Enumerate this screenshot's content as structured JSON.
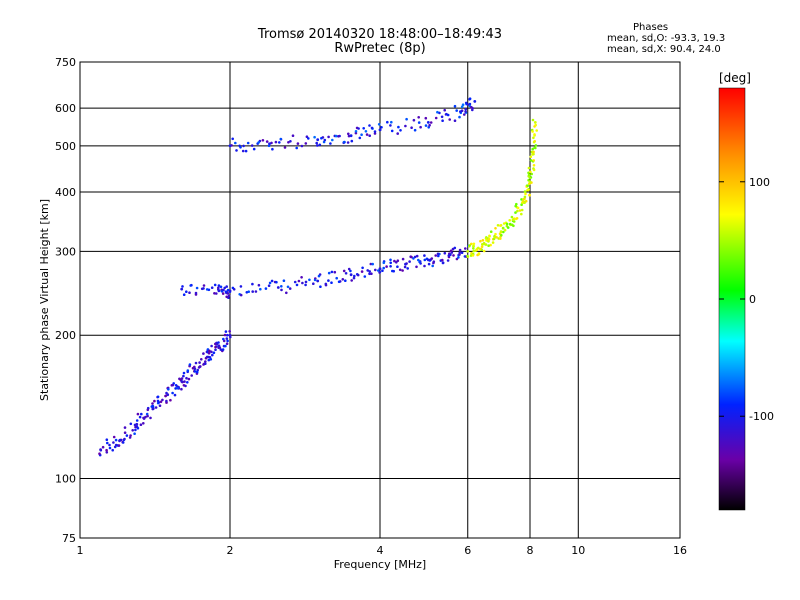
{
  "chart_data": {
    "type": "scatter",
    "title": "Tromsø 20140320 18:48:00–18:49:43",
    "subtitle": "RwPretec (8p)",
    "xlabel": "Frequency [MHz]",
    "ylabel": "Stationary phase Virtual Height [km]",
    "x_scale": "log",
    "y_scale": "log",
    "xlim": [
      1,
      16
    ],
    "ylim": [
      75,
      750
    ],
    "x_ticks": [
      1,
      2,
      4,
      6,
      8,
      10,
      16
    ],
    "y_ticks": [
      75,
      100,
      200,
      300,
      400,
      500,
      600,
      750
    ],
    "grid": true,
    "colorbar": {
      "label": "[deg]",
      "range": [
        -180,
        180
      ],
      "ticks": [
        100,
        0,
        -100
      ]
    },
    "stats": {
      "heading": "Phases",
      "o_mode": "mean, sd,O: -93.3, 19.3",
      "x_mode": "mean, sd,X:  90.4, 24.0"
    },
    "series": [
      {
        "x": [
          1.6,
          1.9,
          2.0,
          2.5,
          3.0,
          3.5,
          4.0,
          4.5,
          5.0,
          5.5,
          6.0
        ],
        "y": [
          250,
          248,
          248,
          252,
          260,
          268,
          276,
          282,
          288,
          294,
          300
        ],
        "phase": -105
      },
      {
        "x": [
          6.0,
          6.3,
          6.6,
          7.0,
          7.4,
          7.8,
          8.0,
          8.1,
          8.2
        ],
        "y": [
          300,
          305,
          315,
          330,
          350,
          380,
          420,
          480,
          560
        ],
        "phase": 60
      },
      {
        "x": [
          2.0,
          2.4,
          3.0,
          3.5,
          4.0,
          5.0,
          5.8,
          6.2
        ],
        "y": [
          500,
          505,
          515,
          525,
          540,
          560,
          590,
          620
        ],
        "phase": -100
      },
      {
        "x": [
          1.1,
          1.2,
          1.3,
          1.4,
          1.5,
          1.6,
          1.7,
          1.8,
          1.9,
          2.0
        ],
        "y": [
          115,
          120,
          130,
          140,
          150,
          160,
          170,
          180,
          190,
          200
        ],
        "phase": -110
      }
    ]
  }
}
